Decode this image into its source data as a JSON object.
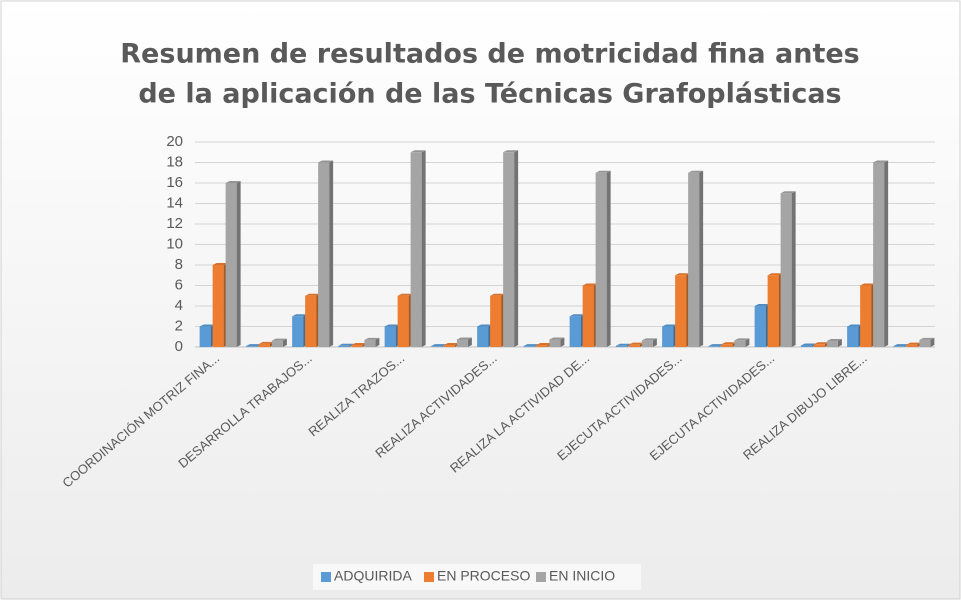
{
  "chart_data": {
    "type": "bar",
    "title": [
      "Resumen de resultados de motricidad fina antes",
      "de la aplicación de las Técnicas Grafoplásticas"
    ],
    "categories": [
      "COORDINACIÓN MOTRIZ FINA...",
      null,
      "DESARROLLA TRABAJOS...",
      null,
      "REALIZA TRAZOS...",
      null,
      "REALIZA ACTIVIDADES...",
      null,
      "REALIZA LA ACTIVIDAD DE...",
      null,
      "EJECUTA ACTIVIDADES...",
      null,
      "EJECUTA ACTIVIDADES...",
      null,
      "REALIZA DIBUJO LIBRE...",
      null
    ],
    "series": [
      {
        "name": "ADQUIRIDA",
        "color": "#5b9bd5",
        "values": [
          2,
          0.08,
          3,
          0.12,
          2,
          0.08,
          2,
          0.08,
          3,
          0.12,
          2,
          0.08,
          4,
          0.15,
          2,
          0.08
        ]
      },
      {
        "name": "EN PROCESO",
        "color": "#ed7d31",
        "values": [
          8,
          0.31,
          5,
          0.19,
          5,
          0.19,
          5,
          0.19,
          6,
          0.23,
          7,
          0.27,
          7,
          0.27,
          6,
          0.23
        ]
      },
      {
        "name": "EN INICIO",
        "color": "#a5a5a5",
        "values": [
          16,
          0.62,
          18,
          0.69,
          19,
          0.73,
          19,
          0.73,
          17,
          0.65,
          17,
          0.65,
          15,
          0.58,
          18,
          0.69
        ]
      }
    ],
    "ylim": [
      0,
      20
    ],
    "yticks": [
      0,
      2,
      4,
      6,
      8,
      10,
      12,
      14,
      16,
      18,
      20
    ],
    "grid": true,
    "legend": "bottom"
  }
}
